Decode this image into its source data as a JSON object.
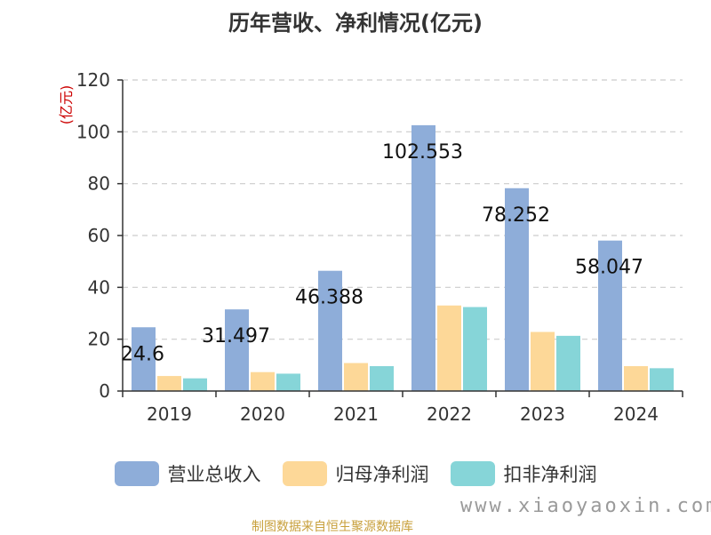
{
  "chart_data": {
    "type": "bar",
    "title": "历年营收、净利情况(亿元)",
    "ylabel": "(亿元)",
    "categories": [
      "2019",
      "2020",
      "2021",
      "2022",
      "2023",
      "2024"
    ],
    "y_ticks": [
      0,
      20,
      40,
      60,
      80,
      100,
      120
    ],
    "ylim": [
      0,
      120
    ],
    "grid": true,
    "legend_position": "bottom",
    "series": [
      {
        "name": "营业总收入",
        "color": "#8eadd9",
        "values": [
          24.6,
          31.497,
          46.388,
          102.553,
          78.252,
          58.047
        ]
      },
      {
        "name": "归母净利润",
        "color": "#fdd898",
        "values": [
          5.8,
          7.3,
          10.8,
          33.0,
          22.8,
          9.6
        ]
      },
      {
        "name": "扣非净利润",
        "color": "#86d5d8",
        "values": [
          4.9,
          6.7,
          9.6,
          32.4,
          21.3,
          8.8
        ]
      }
    ],
    "data_labels": [
      "24.6",
      "31.497",
      "46.388",
      "102.553",
      "78.252",
      "58.047"
    ]
  },
  "source_note": "制图数据来自恒生聚源数据库",
  "watermark": "www.xiaoyaoxin.com"
}
